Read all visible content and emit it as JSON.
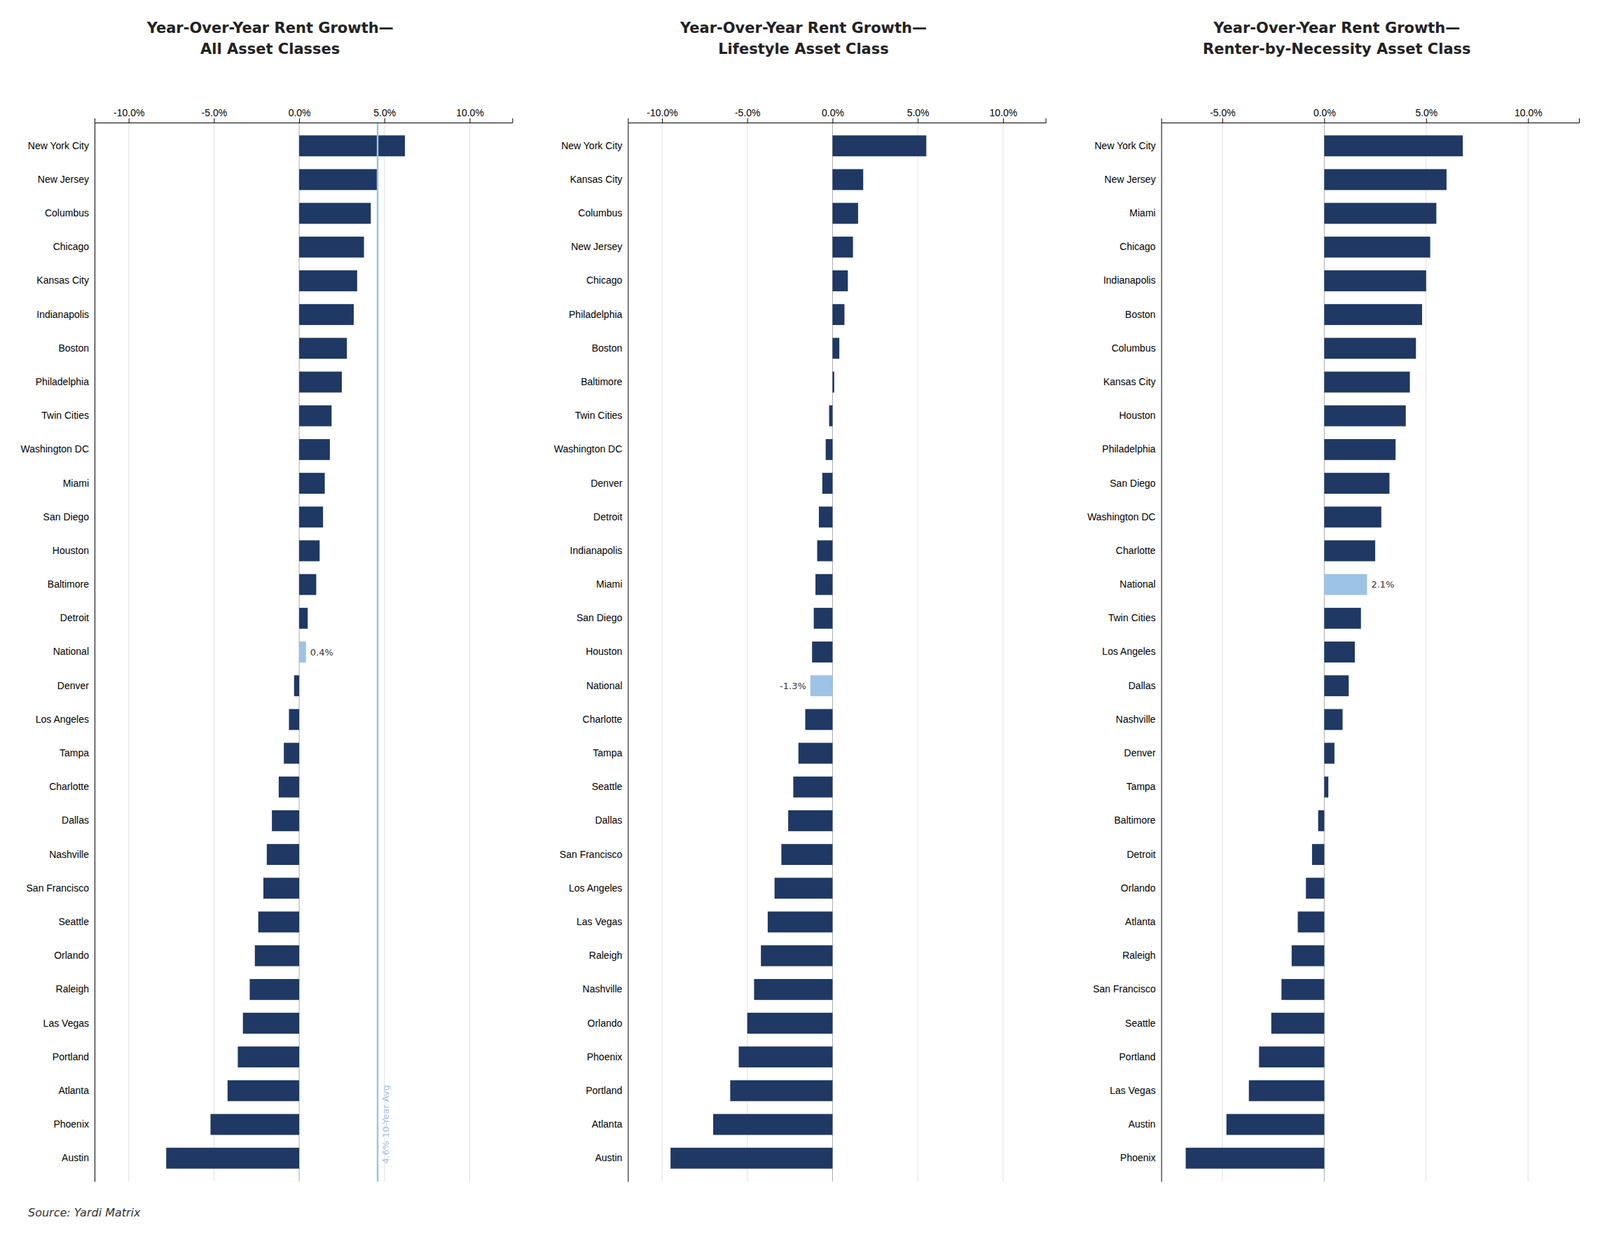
{
  "chart_data": [
    {
      "type": "bar",
      "orientation": "horizontal",
      "title": "Year-Over-Year Rent Growth—\nAll Asset Classes",
      "categories": [
        "New York City",
        "New Jersey",
        "Columbus",
        "Chicago",
        "Kansas City",
        "Indianapolis",
        "Boston",
        "Philadelphia",
        "Twin Cities",
        "Washington DC",
        "Miami",
        "San Diego",
        "Houston",
        "Baltimore",
        "Detroit",
        "National",
        "Denver",
        "Los Angeles",
        "Tampa",
        "Charlotte",
        "Dallas",
        "Nashville",
        "San Francisco",
        "Seattle",
        "Orlando",
        "Raleigh",
        "Las Vegas",
        "Portland",
        "Atlanta",
        "Phoenix",
        "Austin"
      ],
      "values": [
        6.2,
        4.6,
        4.2,
        3.8,
        3.4,
        3.2,
        2.8,
        2.5,
        1.9,
        1.8,
        1.5,
        1.4,
        1.2,
        1.0,
        0.5,
        0.4,
        -0.3,
        -0.6,
        -0.9,
        -1.2,
        -1.6,
        -1.9,
        -2.1,
        -2.4,
        -2.6,
        -2.9,
        -3.3,
        -3.6,
        -4.2,
        -5.2,
        -7.8
      ],
      "colors": [
        "#1F3864",
        "#1F3864",
        "#1F3864",
        "#1F3864",
        "#1F3864",
        "#1F3864",
        "#1F3864",
        "#1F3864",
        "#1F3864",
        "#1F3864",
        "#1F3864",
        "#1F3864",
        "#1F3864",
        "#1F3864",
        "#1F3864",
        "#9DC3E6",
        "#1F3864",
        "#1F3864",
        "#1F3864",
        "#1F3864",
        "#1F3864",
        "#1F3864",
        "#1F3864",
        "#1F3864",
        "#1F3864",
        "#1F3864",
        "#1F3864",
        "#1F3864",
        "#1F3864",
        "#1F3864",
        "#1F3864"
      ],
      "xlim": [
        -12.0,
        12.5
      ],
      "xticks": [
        {
          "value": -10.0,
          "label": "-10.0%"
        },
        {
          "value": -5.0,
          "label": "-5.0%"
        },
        {
          "value": 0.0,
          "label": "0.0%"
        },
        {
          "value": 5.0,
          "label": "5.0%"
        },
        {
          "value": 10.0,
          "label": "10.0%"
        }
      ],
      "grid": true,
      "reference_lines": [
        {
          "value": 4.6,
          "label": "4.6% 10-Year Avg",
          "color": "#9DC3E6"
        }
      ],
      "annotations": [
        {
          "text": "0.4%",
          "category": "National"
        }
      ]
    },
    {
      "type": "bar",
      "orientation": "horizontal",
      "title": "Year-Over-Year Rent Growth—\nLifestyle Asset Class",
      "categories": [
        "New York City",
        "Kansas City",
        "Columbus",
        "New Jersey",
        "Chicago",
        "Philadelphia",
        "Boston",
        "Baltimore",
        "Twin Cities",
        "Washington DC",
        "Denver",
        "Detroit",
        "Indianapolis",
        "Miami",
        "San Diego",
        "Houston",
        "National",
        "Charlotte",
        "Tampa",
        "Seattle",
        "Dallas",
        "San Francisco",
        "Los Angeles",
        "Las Vegas",
        "Raleigh",
        "Nashville",
        "Orlando",
        "Phoenix",
        "Portland",
        "Atlanta",
        "Austin"
      ],
      "values": [
        5.5,
        1.8,
        1.5,
        1.2,
        0.9,
        0.7,
        0.4,
        0.1,
        -0.2,
        -0.4,
        -0.6,
        -0.8,
        -0.9,
        -1.0,
        -1.1,
        -1.2,
        -1.3,
        -1.6,
        -2.0,
        -2.3,
        -2.6,
        -3.0,
        -3.4,
        -3.8,
        -4.2,
        -4.6,
        -5.0,
        -5.5,
        -6.0,
        -7.0,
        -9.5
      ],
      "colors": [
        "#1F3864",
        "#1F3864",
        "#1F3864",
        "#1F3864",
        "#1F3864",
        "#1F3864",
        "#1F3864",
        "#1F3864",
        "#1F3864",
        "#1F3864",
        "#1F3864",
        "#1F3864",
        "#1F3864",
        "#1F3864",
        "#1F3864",
        "#1F3864",
        "#9DC3E6",
        "#1F3864",
        "#1F3864",
        "#1F3864",
        "#1F3864",
        "#1F3864",
        "#1F3864",
        "#1F3864",
        "#1F3864",
        "#1F3864",
        "#1F3864",
        "#1F3864",
        "#1F3864",
        "#1F3864",
        "#1F3864"
      ],
      "xlim": [
        -12.0,
        12.5
      ],
      "xticks": [
        {
          "value": -10.0,
          "label": "-10.0%"
        },
        {
          "value": -5.0,
          "label": "-5.0%"
        },
        {
          "value": 0.0,
          "label": "0.0%"
        },
        {
          "value": 5.0,
          "label": "5.0%"
        },
        {
          "value": 10.0,
          "label": "10.0%"
        }
      ],
      "grid": true,
      "annotations": [
        {
          "text": "-1.3%",
          "category": "National"
        }
      ]
    },
    {
      "type": "bar",
      "orientation": "horizontal",
      "title": "Year-Over-Year Rent Growth—\nRenter-by-Necessity Asset Class",
      "categories": [
        "New York City",
        "New Jersey",
        "Miami",
        "Chicago",
        "Indianapolis",
        "Boston",
        "Columbus",
        "Kansas City",
        "Houston",
        "Philadelphia",
        "San Diego",
        "Washington DC",
        "Charlotte",
        "National",
        "Twin Cities",
        "Los Angeles",
        "Dallas",
        "Nashville",
        "Denver",
        "Tampa",
        "Baltimore",
        "Detroit",
        "Orlando",
        "Atlanta",
        "Raleigh",
        "San Francisco",
        "Seattle",
        "Portland",
        "Las Vegas",
        "Austin",
        "Phoenix"
      ],
      "values": [
        6.8,
        6.0,
        5.5,
        5.2,
        5.0,
        4.8,
        4.5,
        4.2,
        4.0,
        3.5,
        3.2,
        2.8,
        2.5,
        2.1,
        1.8,
        1.5,
        1.2,
        0.9,
        0.5,
        0.2,
        -0.3,
        -0.6,
        -0.9,
        -1.3,
        -1.6,
        -2.1,
        -2.6,
        -3.2,
        -3.7,
        -4.8,
        -6.8
      ],
      "colors": [
        "#1F3864",
        "#1F3864",
        "#1F3864",
        "#1F3864",
        "#1F3864",
        "#1F3864",
        "#1F3864",
        "#1F3864",
        "#1F3864",
        "#1F3864",
        "#1F3864",
        "#1F3864",
        "#1F3864",
        "#9DC3E6",
        "#1F3864",
        "#1F3864",
        "#1F3864",
        "#1F3864",
        "#1F3864",
        "#1F3864",
        "#1F3864",
        "#1F3864",
        "#1F3864",
        "#1F3864",
        "#1F3864",
        "#1F3864",
        "#1F3864",
        "#1F3864",
        "#1F3864",
        "#1F3864",
        "#1F3864"
      ],
      "xlim": [
        -8.0,
        12.5
      ],
      "xticks": [
        {
          "value": -5.0,
          "label": "-5.0%"
        },
        {
          "value": 0.0,
          "label": "0.0%"
        },
        {
          "value": 5.0,
          "label": "5.0%"
        },
        {
          "value": 10.0,
          "label": "10.0%"
        }
      ],
      "grid": true,
      "annotations": [
        {
          "text": "2.1%",
          "category": "National"
        }
      ]
    }
  ],
  "source": "Source: Yardi Matrix"
}
